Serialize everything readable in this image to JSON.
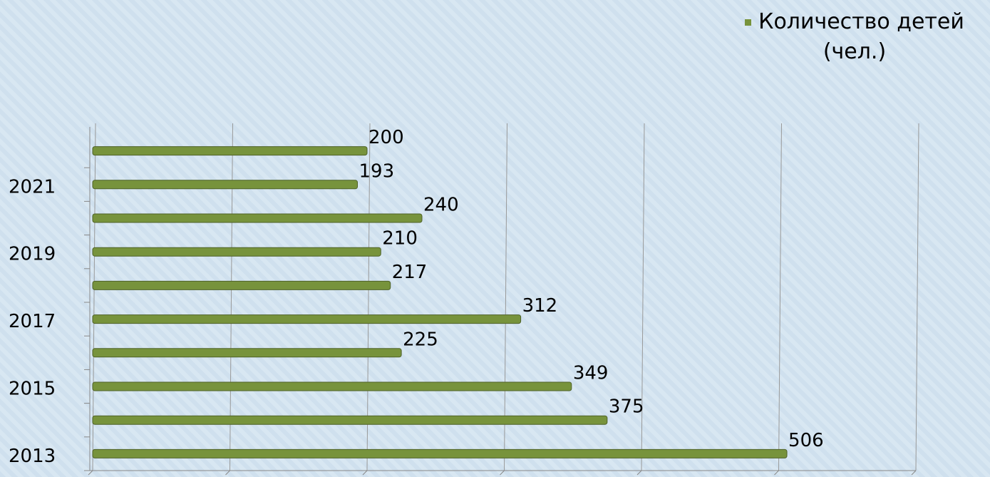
{
  "chart_data": {
    "type": "hbar",
    "categories": [
      "2013",
      null,
      "2015",
      null,
      "2017",
      null,
      "2019",
      null,
      "2021",
      null
    ],
    "series": [
      {
        "name": "Количество детей (чел.)",
        "color": "#77933c",
        "values": [
          506,
          375,
          349,
          225,
          312,
          217,
          210,
          240,
          193,
          200
        ]
      }
    ],
    "xlim": [
      0,
      600
    ],
    "xticks": [
      0,
      100,
      200,
      300,
      400,
      500,
      600
    ],
    "grid": true,
    "legend": "top-right"
  }
}
